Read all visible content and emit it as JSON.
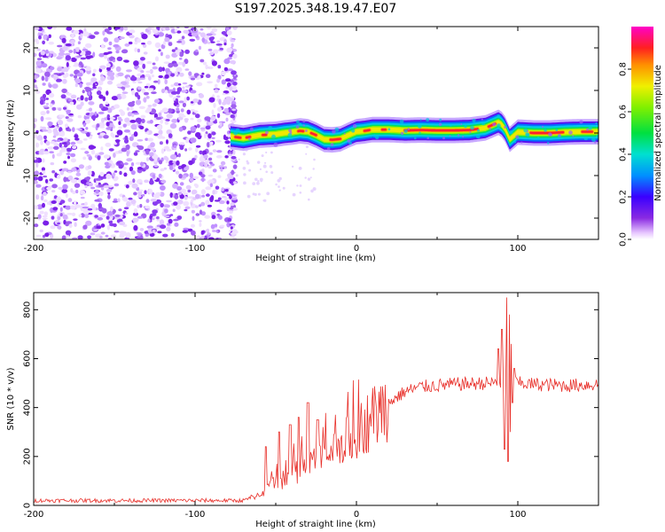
{
  "title": "S197.2025.348.19.47.E07",
  "chart_data": [
    {
      "type": "heatmap",
      "xlabel": "Height of straight line (km)",
      "ylabel": "Frequency (Hz)",
      "xlim": [
        -200,
        150
      ],
      "ylim": [
        -25,
        25
      ],
      "xticks": [
        -200,
        -100,
        0,
        100
      ],
      "xtick_labels": [
        "-200",
        "-100",
        "0",
        "100"
      ],
      "yticks": [
        20,
        10,
        0,
        -10,
        -20
      ],
      "ytick_labels": [
        "20",
        "10",
        "0",
        "-10",
        "-20"
      ],
      "noise_region_x": [
        -200,
        -75
      ],
      "centerline": {
        "x": [
          -78,
          -70,
          -60,
          -50,
          -45,
          -40,
          -35,
          -30,
          -25,
          -20,
          -15,
          -10,
          -5,
          0,
          5,
          10,
          20,
          30,
          40,
          50,
          60,
          70,
          80,
          85,
          88,
          90,
          92,
          95,
          100,
          110,
          120,
          130,
          140,
          150
        ],
        "freq": [
          -0.8,
          -1.2,
          -0.5,
          -0.3,
          0.0,
          0.2,
          0.5,
          0.3,
          -0.5,
          -1.5,
          -1.6,
          -1.4,
          -0.5,
          0.3,
          0.5,
          0.8,
          0.8,
          0.6,
          0.7,
          0.6,
          0.6,
          0.7,
          1.2,
          2.0,
          2.5,
          2.0,
          1.0,
          -1.5,
          0.2,
          0.0,
          0.0,
          0.2,
          0.3,
          0.3
        ]
      },
      "colorbar": {
        "label": "Normalized spectral amplitude",
        "range": [
          0.0,
          1.0
        ],
        "ticks": [
          0.0,
          0.2,
          0.4,
          0.6,
          0.8
        ],
        "tick_labels": [
          "0.0",
          "0.2",
          "0.4",
          "0.6",
          "0.8"
        ]
      }
    },
    {
      "type": "line",
      "xlabel": "Height of straight line (km)",
      "ylabel": "SNR (10 * v/v)",
      "xlim": [
        -200,
        150
      ],
      "ylim": [
        0,
        870
      ],
      "xticks": [
        -200,
        -100,
        0,
        100
      ],
      "xtick_labels": [
        "-200",
        "-100",
        "0",
        "100"
      ],
      "yticks": [
        0,
        200,
        400,
        600,
        800
      ],
      "ytick_labels": [
        "0",
        "200",
        "400",
        "600",
        "800"
      ],
      "color": "#e8302a",
      "trend": {
        "x": [
          -200,
          -100,
          -70,
          -60,
          -50,
          -40,
          -30,
          -20,
          -10,
          0,
          10,
          20,
          30,
          40,
          60,
          80,
          88,
          92,
          95,
          98,
          100,
          110,
          130,
          150
        ],
        "snr": [
          20,
          20,
          20,
          45,
          90,
          130,
          165,
          200,
          245,
          300,
          360,
          420,
          465,
          485,
          495,
          500,
          500,
          505,
          500,
          505,
          500,
          495,
          490,
          495
        ]
      },
      "spikes": {
        "x": [
          -56,
          -48,
          -41,
          -36,
          -30,
          -24,
          88,
          90,
          92,
          93.5,
          94,
          95,
          95.5,
          96,
          97,
          98
        ],
        "snr": [
          240,
          300,
          330,
          360,
          420,
          350,
          640,
          720,
          230,
          850,
          180,
          780,
          300,
          660,
          420,
          560
        ]
      }
    }
  ]
}
